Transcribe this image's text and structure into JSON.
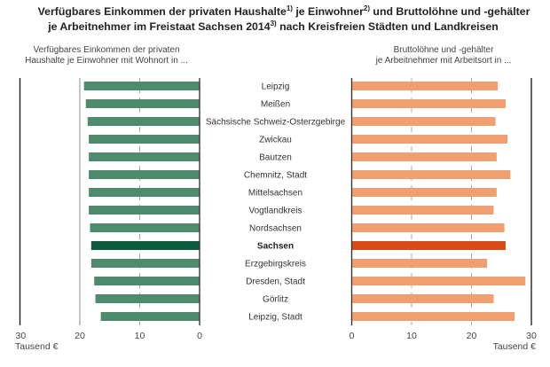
{
  "title_line1": {
    "a": "Verfügbares Einkommen der privaten Haushalte",
    "fn1": "1)",
    "b": " je Einwohner",
    "fn2": "2)",
    "c": " und Bruttolöhne und -gehälter"
  },
  "title_line2": {
    "a": "je Arbeitnehmer im Freistaat Sachsen 2014",
    "fn3": "3)",
    "b": " nach Kreisfreien Städten und Landkreisen"
  },
  "chart_data": {
    "type": "bar",
    "orientation": "horizontal-butterfly",
    "unit": "Tausend €",
    "categories": [
      "Leipzig",
      "Meißen",
      "Sächsische Schweiz-Osterzgebirge",
      "Zwickau",
      "Bautzen",
      "Chemnitz, Stadt",
      "Mittelsachsen",
      "Vogtlandkreis",
      "Nordsachsen",
      "Sachsen",
      "Erzgebirgskreis",
      "Dresden, Stadt",
      "Görlitz",
      "Leipzig, Stadt"
    ],
    "highlight_category": "Sachsen",
    "series": [
      {
        "name": "Verfügbares Einkommen der privaten Haushalte je Einwohner mit Wohnort in ...",
        "side": "left",
        "color": "#4e8a6e",
        "highlight_color": "#0d5a3e",
        "values": [
          19.3,
          19.0,
          18.7,
          18.5,
          18.5,
          18.5,
          18.5,
          18.5,
          18.3,
          18.1,
          18.1,
          17.6,
          17.4,
          16.5
        ],
        "xlim": [
          0,
          30
        ],
        "ticks": [
          30,
          20,
          10,
          0
        ],
        "xlabel": "Tausend €"
      },
      {
        "name": "Bruttolöhne und -gehälter je Arbeitnehmer mit Arbeitsort in ...",
        "side": "right",
        "color": "#f0a070",
        "highlight_color": "#d84a18",
        "values": [
          24.4,
          25.7,
          24.0,
          26.0,
          24.2,
          26.5,
          24.2,
          23.7,
          25.5,
          25.7,
          22.6,
          29.0,
          23.7,
          27.2
        ],
        "xlim": [
          0,
          30
        ],
        "ticks": [
          0,
          10,
          20,
          30
        ],
        "xlabel": "Tausend €"
      }
    ],
    "grid": true,
    "legend": "none"
  },
  "subtitles": {
    "left_line1": "Verfügbares Einkommen der privaten",
    "left_line2": "Haushalte je Einwohner mit Wohnort in ...",
    "right_line1": "Bruttolöhne und -gehälter",
    "right_line2": "je Arbeitnehmer mit Arbeitsort in ..."
  }
}
